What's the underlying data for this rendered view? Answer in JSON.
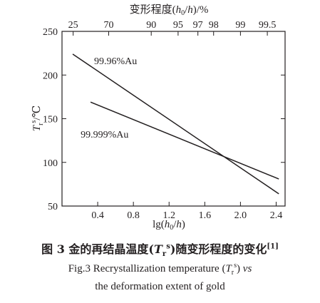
{
  "chart_data": {
    "type": "line",
    "top_axis": {
      "label": "变形程度(h0/h)/%",
      "ticks": [
        {
          "label": "25",
          "x": 0.125
        },
        {
          "label": "70",
          "x": 0.523
        },
        {
          "label": "90",
          "x": 1.0
        },
        {
          "label": "95",
          "x": 1.301
        },
        {
          "label": "97",
          "x": 1.523
        },
        {
          "label": "98",
          "x": 1.699
        },
        {
          "label": "99",
          "x": 2.0
        },
        {
          "label": "99.5",
          "x": 2.301
        }
      ]
    },
    "xlabel": "lg(h0/h)",
    "ylabel": "Tr^s/℃",
    "xlim": [
      0.0,
      2.5
    ],
    "ylim": [
      50,
      250
    ],
    "xticks": [
      0.4,
      0.8,
      1.2,
      1.6,
      2.0,
      2.4
    ],
    "yticks": [
      50,
      100,
      150,
      200,
      250
    ],
    "grid": false,
    "series": [
      {
        "name": "99.96%Au",
        "x": [
          0.12,
          2.43
        ],
        "y": [
          224,
          64
        ]
      },
      {
        "name": "99.999%Au",
        "x": [
          0.32,
          2.43
        ],
        "y": [
          169,
          81
        ]
      }
    ]
  },
  "caption": {
    "zh_prefix": "图 3  金的再结晶温度(",
    "zh_T": "T",
    "zh_sub": "r",
    "zh_sup": "s",
    "zh_suffix": ")随变形程度的变化",
    "zh_ref": "[1]",
    "en_line1_prefix": "Fig.3 Recrystallization temperature (",
    "en_T": "T",
    "en_sub": "r",
    "en_sup": "s",
    "en_line1_suffix": ") ",
    "en_vs": "vs",
    "en_line2": "the deformation extent of gold"
  }
}
